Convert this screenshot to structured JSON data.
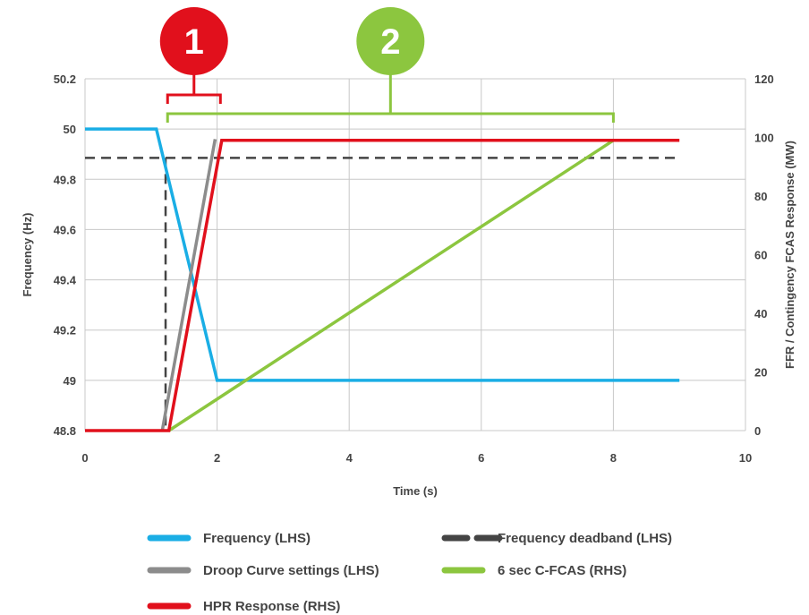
{
  "chart_data": {
    "type": "line",
    "xlabel": "Time (s)",
    "ylabel_left": "Frequency (Hz)",
    "ylabel_right": "FFR / Contingency FCAS Response  (MW)",
    "xlim": [
      0,
      10
    ],
    "ylim_left": [
      48.8,
      50.2
    ],
    "ylim_right": [
      0,
      120
    ],
    "xticks": [
      "0",
      "2",
      "4",
      "6",
      "8",
      "10"
    ],
    "yticks_left": [
      "48.8",
      "49",
      "49.2",
      "49.4",
      "49.6",
      "49.8",
      "50",
      "50.2"
    ],
    "yticks_right": [
      "0",
      "20",
      "40",
      "60",
      "80",
      "100",
      "120"
    ],
    "grid": true,
    "legend_position": "bottom",
    "series": [
      {
        "name": "Frequency (LHS)",
        "axis": "left",
        "color": "#1aaee5",
        "style": "solid",
        "x": [
          0,
          1.08,
          2.0,
          9.0
        ],
        "y": [
          50.0,
          50.0,
          49.0,
          49.0
        ]
      },
      {
        "name": "Frequency deadband (LHS)",
        "axis": "left",
        "color": "#444444",
        "style": "dashed",
        "x": [
          0,
          9.0
        ],
        "y": [
          49.885,
          49.885
        ]
      },
      {
        "name": "Droop Curve settings (LHS)",
        "axis": "left",
        "color": "#8c8c8c",
        "style": "solid",
        "x": [
          1.17,
          1.97
        ],
        "y": [
          48.8,
          49.96
        ]
      },
      {
        "name": "6 sec C-FCAS (RHS)",
        "axis": "right",
        "color": "#8cc63f",
        "style": "solid",
        "x": [
          1.27,
          8.0
        ],
        "y": [
          0,
          99
        ]
      },
      {
        "name": "HPR Response (RHS)",
        "axis": "right",
        "color": "#e1101c",
        "style": "solid",
        "x": [
          0,
          1.27,
          2.07,
          9.0
        ],
        "y": [
          0,
          0,
          99,
          99
        ]
      }
    ],
    "deadband_drop": {
      "x": 1.22,
      "y_top": 49.885,
      "y_bottom": 48.8,
      "axis": "left",
      "color": "#444444"
    },
    "annotations": [
      {
        "label": "1",
        "color": "#e1101c",
        "x_start": 1.25,
        "x_end": 2.05
      },
      {
        "label": "2",
        "color": "#8cc63f",
        "x_start": 1.25,
        "x_end": 8.0
      }
    ]
  },
  "legend": [
    {
      "label": "Frequency (LHS)",
      "color": "#1aaee5",
      "style": "solid"
    },
    {
      "label": "Frequency deadband (LHS)",
      "color": "#444444",
      "style": "dashed"
    },
    {
      "label": "Droop Curve settings (LHS)",
      "color": "#8c8c8c",
      "style": "solid"
    },
    {
      "label": "6 sec C-FCAS (RHS)",
      "color": "#8cc63f",
      "style": "solid"
    },
    {
      "label": "HPR Response (RHS)",
      "color": "#e1101c",
      "style": "solid"
    }
  ]
}
